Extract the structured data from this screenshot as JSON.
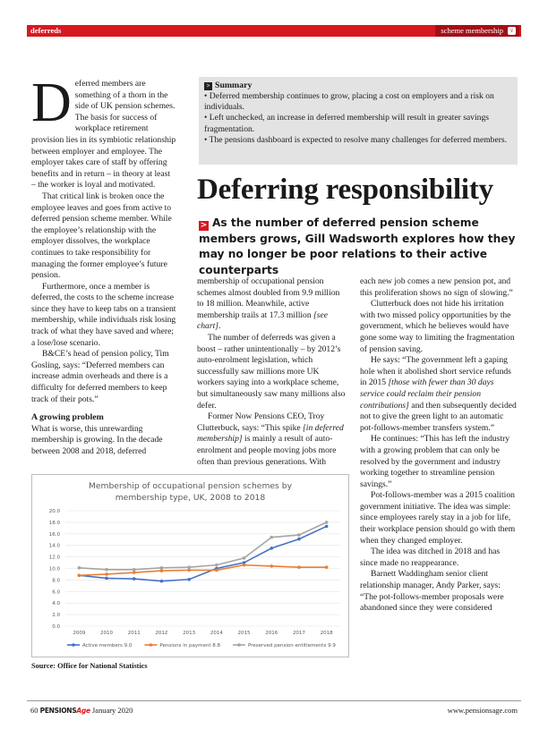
{
  "header": {
    "section": "deferreds",
    "tag": "scheme membership"
  },
  "summary": {
    "heading": "Summary",
    "items": [
      "Deferred membership continues to grow, placing a cost on employers and a risk on individuals.",
      "Left unchecked, an increase in deferred membership will result in greater savings fragmentation.",
      "The pensions dashboard is expected to resolve many challenges for deferred members."
    ]
  },
  "title": "Deferring responsibility",
  "standfirst": "As the number of deferred pension scheme members grows, Gill Wadsworth explores how they may no longer be poor relations to their active counterparts",
  "columns": [
    {
      "drop_cap": "D",
      "blocks": [
        [
          "eferred members are something of a thorn in the side of UK pension schemes. The basis for success of workplace retirement provision lies in its symbiotic relationship between employer and employee. The employer takes care of staff by offering benefits and in return – in theory at least – the worker is loyal and motivated."
        ],
        [
          "That critical link is broken once the employee leaves and goes from active to deferred pension scheme member. While the employee’s relationship with the employer dissolves, the workplace continues to take responsibility for managing the former employee’s future pension."
        ],
        [
          "Furthermore, once a member is deferred, the costs to the scheme increase since they have to keep tabs on a transient membership, while individuals risk losing track of what they have saved and where; a lose/lose scenario."
        ],
        [
          "B&CE’s head of pension policy, Tim Gosling, says: “Deferred members can increase admin overheads and there is a difficulty for deferred members to keep track of their pots.”"
        ],
        {
          "heading": "A growing problem"
        },
        [
          "What is worse, this unrewarding membership is growing. In the decade between 2008 and 2018, deferred"
        ]
      ]
    },
    {
      "blocks": [
        [
          "membership of occupational pension schemes almost doubled from 9.9 million to 18 million. Meanwhile, active membership trails at 17.3 million ",
          {
            "italic": "[see chart]"
          },
          "."
        ],
        [
          "The number of deferreds was given a boost – rather unintentionally – by 2012’s auto-enrolment legislation, which successfully saw millions more UK workers saying into a workplace scheme, but simultaneously saw many millions also defer."
        ],
        [
          "Former Now Pensions CEO, Troy Clutterbuck, says: “This spike ",
          {
            "italic": "[in deferred membership]"
          },
          " is mainly a result of auto-enrolment and people moving jobs more often than previous generations. With"
        ]
      ]
    },
    {
      "blocks": [
        [
          "each new job comes a new pension pot, and this proliferation shows no sign of slowing.”"
        ],
        [
          "Clutterbuck does not hide his irritation with two missed policy opportunities by the government, which he believes would have gone some way to limiting the fragmentation of pension saving."
        ],
        [
          "He says: “The government left a gaping hole when it abolished short service refunds in 2015 ",
          {
            "italic": "[those with fewer than 30 days service could reclaim their pension contributions]"
          },
          " and then subsequently decided not to give the green light to an automatic pot-follows-member transfers system.”"
        ],
        [
          "He continues: “This has left the industry with a growing problem that can only be resolved by the government and industry working together to streamline pension savings.”"
        ],
        [
          "Pot-follows-member was a 2015 coalition government initiative. The idea was simple: since employees rarely stay in a job for life, their workplace pension should go with them when they changed employer."
        ],
        [
          "The idea was ditched in 2018 and has since made no reappearance."
        ],
        [
          "Barnett Waddingham senior client relationship manager, Andy Parker, says: “The pot-follows-member proposals were abandoned since they were considered"
        ]
      ]
    }
  ],
  "chart_data": {
    "type": "line",
    "title": "Membership of occupational pension schemes by membership type, UK, 2008 to 2018",
    "categories": [
      "2009",
      "2010",
      "2011",
      "2012",
      "2013",
      "2014",
      "2015",
      "2016",
      "2017",
      "2018"
    ],
    "series": [
      {
        "name": "Active members 9.0",
        "color": "#4472c4",
        "values": [
          8.8,
          8.3,
          8.2,
          7.8,
          8.1,
          10.0,
          11.0,
          13.5,
          15.1,
          17.3
        ]
      },
      {
        "name": "Pensions in payment 8.8",
        "color": "#ed7d31",
        "values": [
          8.8,
          9.0,
          9.3,
          9.6,
          9.7,
          9.7,
          10.6,
          10.4,
          10.2,
          10.2
        ]
      },
      {
        "name": "Preserved pension entitlements 9.9",
        "color": "#a5a5a5",
        "values": [
          10.1,
          9.8,
          9.8,
          10.1,
          10.2,
          10.6,
          11.8,
          15.4,
          15.8,
          18.0
        ]
      }
    ],
    "ylim": [
      0,
      20
    ],
    "yticks": [
      {
        "value": 0,
        "label": "0.0"
      },
      {
        "value": 2,
        "label": "2.0"
      },
      {
        "value": 4,
        "label": "4.0"
      },
      {
        "value": 6,
        "label": "6.0"
      },
      {
        "value": 8,
        "label": "8.0"
      },
      {
        "value": 10,
        "label": "10.0"
      },
      {
        "value": 12,
        "label": "12.0"
      },
      {
        "value": 14,
        "label": "14.0"
      },
      {
        "value": 16,
        "label": "16.0"
      },
      {
        "value": 18,
        "label": "18.0"
      },
      {
        "value": 20,
        "label": "20.0"
      }
    ],
    "grid": true,
    "legend": "bottom"
  },
  "source": "Source: Office for National Statistics",
  "footer": {
    "page": "60",
    "logo": {
      "pensions": "PENSIONS",
      "age": "Age"
    },
    "issue": "January 2020",
    "url": "www.pensionsage.com"
  }
}
